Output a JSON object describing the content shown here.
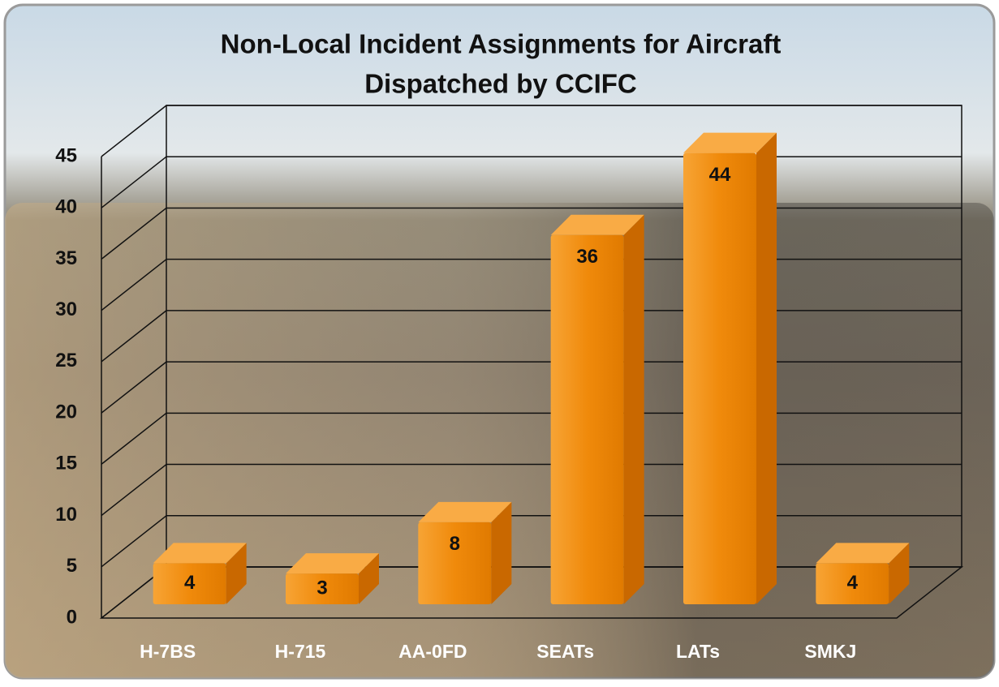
{
  "chart_data": {
    "type": "bar3d",
    "title": [
      "Non-Local Incident Assignments for Aircraft",
      "Dispatched by CCIFC"
    ],
    "categories": [
      "H-7BS",
      "H-715",
      "AA-0FD",
      "SEATs",
      "LATs",
      "SMKJ"
    ],
    "values": [
      4,
      3,
      8,
      36,
      44,
      4
    ],
    "color": "#f08a0b",
    "ylim": [
      0,
      45
    ],
    "yticks": [
      0,
      5,
      10,
      15,
      20,
      25,
      30,
      35,
      40,
      45
    ],
    "grid": true
  }
}
